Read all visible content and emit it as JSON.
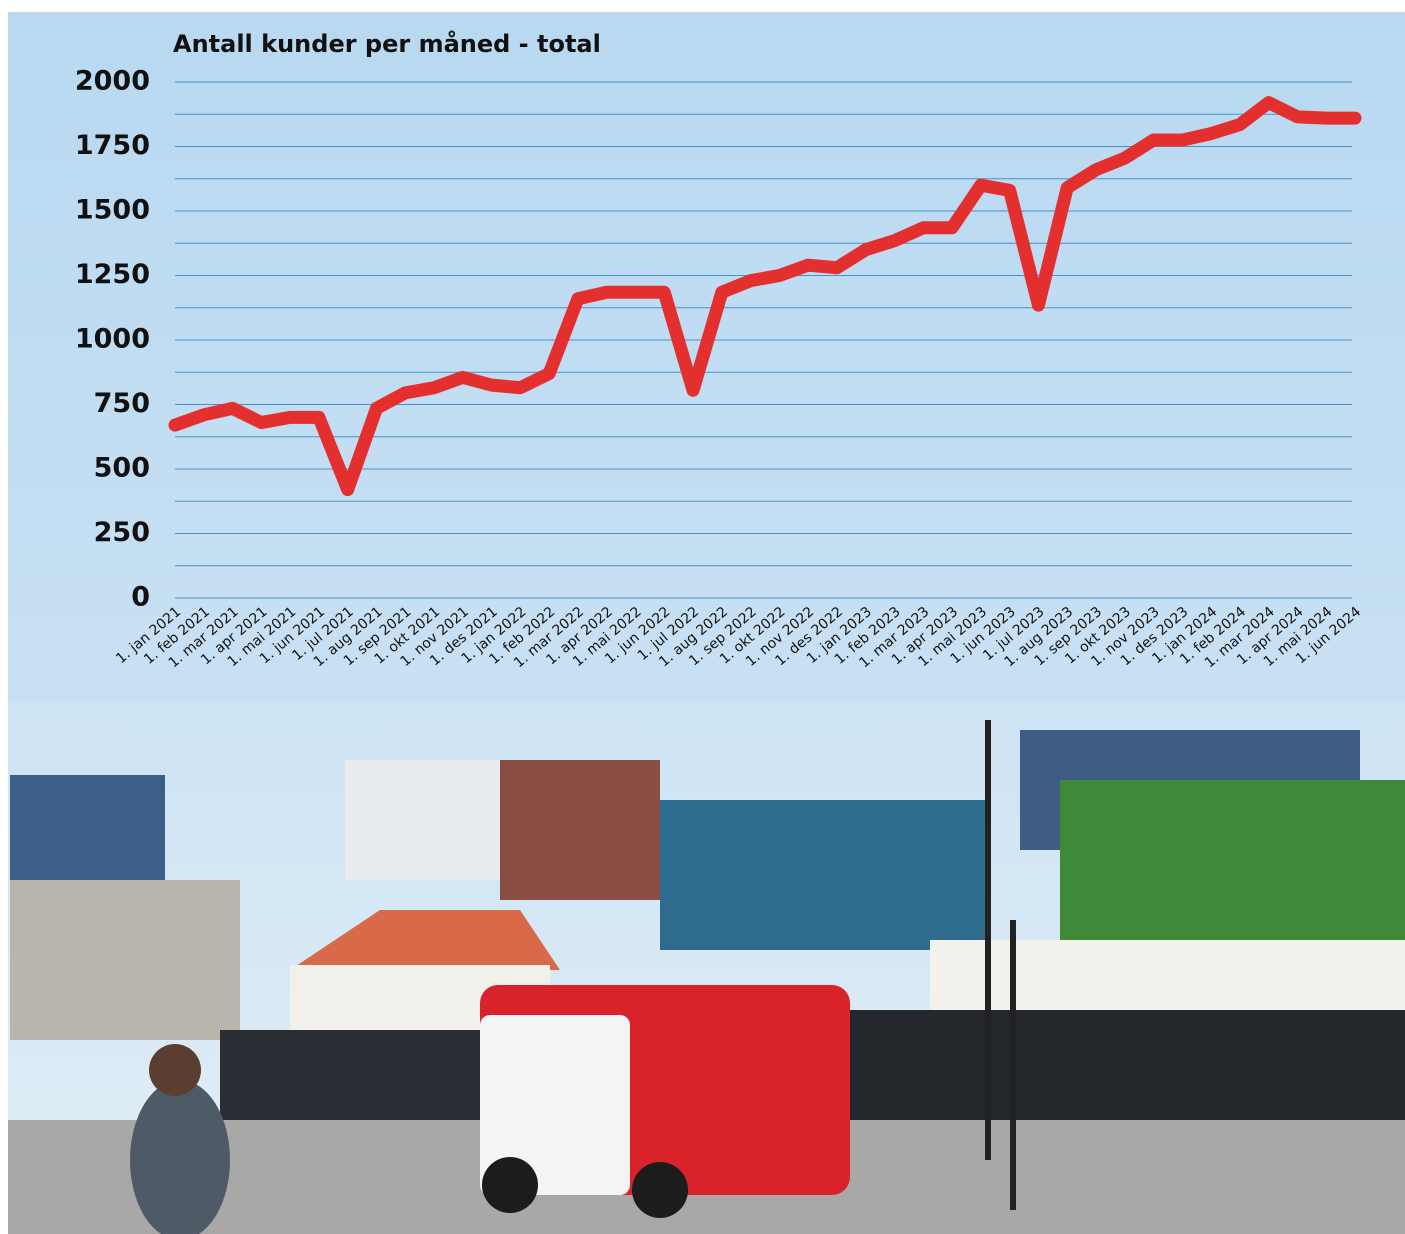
{
  "chart_data": {
    "type": "line",
    "title": "Antall kunder per måned - total",
    "categories": [
      "1. jan 2021",
      "1. feb 2021",
      "1. mar 2021",
      "1. apr 2021",
      "1. mai 2021",
      "1. jun 2021",
      "1. jul 2021",
      "1. aug 2021",
      "1. sep 2021",
      "1. okt 2021",
      "1. nov 2021",
      "1. des 2021",
      "1. jan 2022",
      "1. feb 2022",
      "1. mar 2022",
      "1. apr 2022",
      "1. mai 2022",
      "1. jun 2022",
      "1. jul 2022",
      "1. aug 2022",
      "1. sep 2022",
      "1. okt 2022",
      "1. nov 2022",
      "1. des 2022",
      "1. jan 2023",
      "1. feb 2023",
      "1. mar 2023",
      "1. apr 2023",
      "1. mai 2023",
      "1. jun 2023",
      "1. jul 2023",
      "1. aug 2023",
      "1. sep 2023",
      "1. okt 2023",
      "1. nov 2023",
      "1. des 2023",
      "1. jan 2024",
      "1. feb 2024",
      "1. mar 2024",
      "1. apr 2024",
      "1. mai 2024",
      "1. jun 2024"
    ],
    "values": [
      670,
      710,
      735,
      680,
      700,
      700,
      420,
      735,
      795,
      815,
      855,
      825,
      815,
      870,
      1160,
      1185,
      1185,
      1185,
      805,
      1185,
      1230,
      1250,
      1290,
      1280,
      1350,
      1385,
      1435,
      1435,
      1600,
      1580,
      1135,
      1590,
      1660,
      1705,
      1775,
      1775,
      1800,
      1835,
      1920,
      1865,
      1860,
      1860
    ],
    "color": "#e42f2f",
    "ylim": [
      0,
      2000
    ],
    "yticks": [
      0,
      250,
      500,
      750,
      1000,
      1250,
      1500,
      1750,
      2000
    ],
    "yminor_ticks": [
      125,
      375,
      625,
      875,
      1125,
      1375,
      1625,
      1875
    ],
    "grid": true,
    "grid_color": "#4a90c8"
  }
}
